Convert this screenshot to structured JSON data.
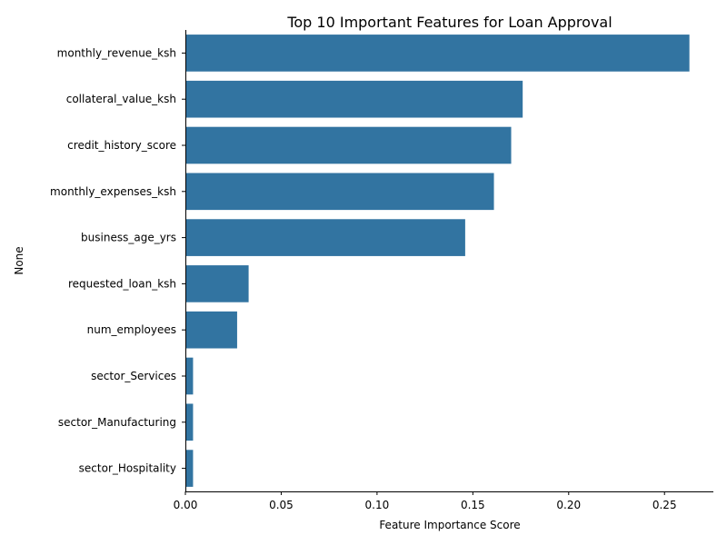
{
  "chart_data": {
    "type": "bar",
    "orientation": "horizontal",
    "title": "Top 10 Important Features for Loan Approval",
    "xlabel": "Feature Importance Score",
    "ylabel": "None",
    "xlim": [
      0,
      0.2755
    ],
    "xticks": [
      "0.00",
      "0.05",
      "0.10",
      "0.15",
      "0.20",
      "0.25"
    ],
    "grid": false,
    "bar_color": "#3274a1",
    "categories": [
      "monthly_revenue_ksh",
      "collateral_value_ksh",
      "credit_history_score",
      "monthly_expenses_ksh",
      "business_age_yrs",
      "requested_loan_ksh",
      "num_employees",
      "sector_Services",
      "sector_Manufacturing",
      "sector_Hospitality"
    ],
    "values": [
      0.263,
      0.176,
      0.17,
      0.161,
      0.146,
      0.033,
      0.027,
      0.004,
      0.004,
      0.004
    ]
  }
}
